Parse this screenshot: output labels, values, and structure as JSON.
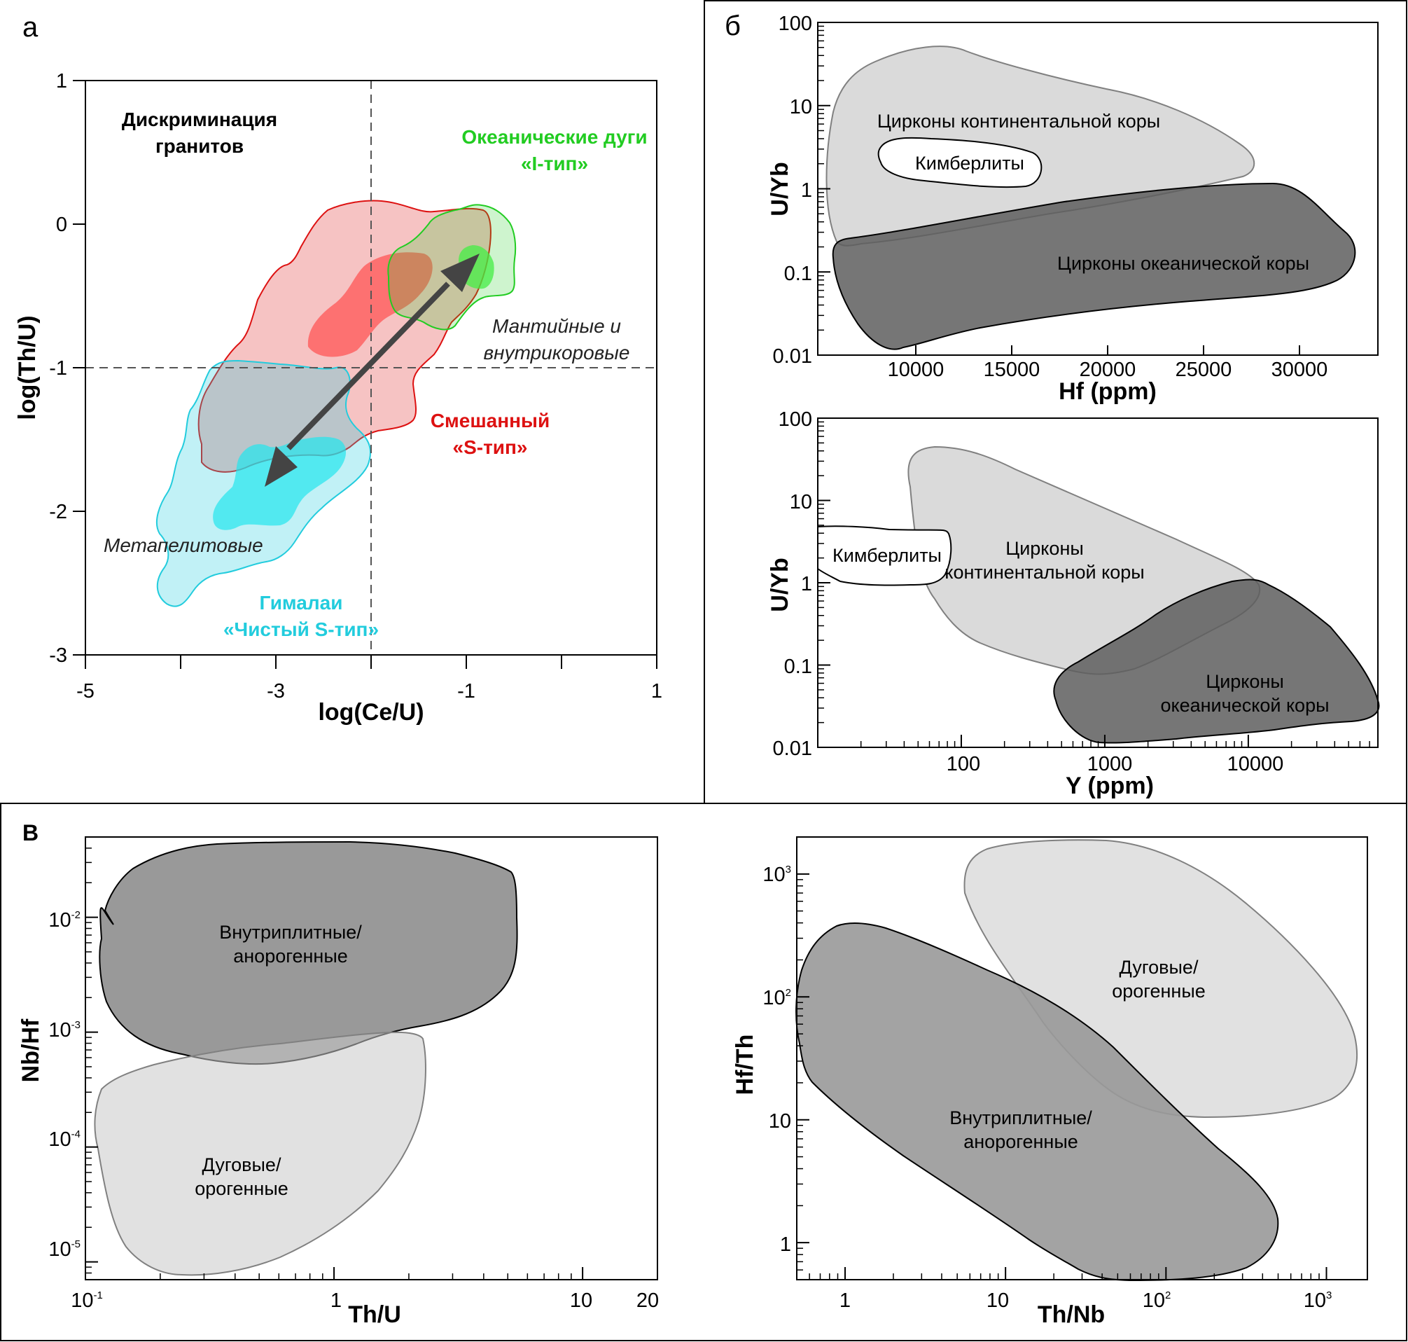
{
  "chart_data": [
    {
      "panel": "а",
      "type": "area",
      "xlabel": "log(Ce/U)",
      "ylabel": "log(Th/U)",
      "xlim": [
        -5,
        1
      ],
      "ylim": [
        -3,
        1
      ],
      "x_ticks": [
        "-5",
        "-3",
        "-1",
        "1"
      ],
      "y_ticks": [
        "1",
        "0",
        "-1",
        "-2",
        "-3"
      ],
      "reference_lines": {
        "x": -2,
        "y": -1
      },
      "header": "Дискриминация гранитов",
      "fields": [
        {
          "label": "Океанические дуги «I-тип»",
          "color": "#22cc22"
        },
        {
          "label": "Смешанный «S-тип»",
          "color": "#dd1111"
        },
        {
          "label": "Гималаи «Чистый S-тип»",
          "color": "#22ccdd"
        }
      ],
      "annotations": [
        "Мантийные и внутрикоровые",
        "Метапелитовые"
      ],
      "arrow": {
        "from": [
          -3.1,
          -1.8
        ],
        "to": [
          -0.95,
          -0.2
        ]
      }
    },
    {
      "panel": "б",
      "type": "area",
      "xlabel": "Hf (ppm)",
      "ylabel": "U/Yb",
      "x_ticks": [
        "10000",
        "15000",
        "20000",
        "25000",
        "30000"
      ],
      "y_ticks": [
        "100",
        "10",
        "1",
        "0.1",
        "0.01"
      ],
      "xlim": [
        5500,
        34500
      ],
      "ylim": [
        0.01,
        100
      ],
      "y_scale": "log",
      "fields": [
        "Цирконы континентальной коры",
        "Кимберлиты",
        "Цирконы океанической коры"
      ]
    },
    {
      "panel": "б",
      "type": "area",
      "xlabel": "Y (ppm)",
      "ylabel": "U/Yb",
      "x_ticks": [
        "100",
        "1000",
        "10000"
      ],
      "y_ticks": [
        "100",
        "10",
        "1",
        "0.1",
        "0.01"
      ],
      "xlim": [
        10,
        80000
      ],
      "ylim": [
        0.01,
        100
      ],
      "x_scale": "log",
      "y_scale": "log",
      "fields": [
        "Кимберлиты",
        "Цирконы континентальной коры",
        "Цирконы океанической коры"
      ]
    },
    {
      "panel": "в",
      "type": "area",
      "xlabel": "Th/U",
      "ylabel": "Nb/Hf",
      "x_ticks": [
        {
          "b": "10",
          "e": "-1"
        },
        {
          "b": "1",
          "e": ""
        },
        {
          "b": "10",
          "e": ""
        },
        {
          "b": "20",
          "e": ""
        }
      ],
      "y_ticks": [
        {
          "b": "10",
          "e": "-2"
        },
        {
          "b": "10",
          "e": "-3"
        },
        {
          "b": "10",
          "e": "-4"
        },
        {
          "b": "10",
          "e": "-5"
        }
      ],
      "xlim": [
        0.1,
        20
      ],
      "ylim": [
        7e-06,
        0.05
      ],
      "x_scale": "log",
      "y_scale": "log",
      "fields": [
        "Внутриплитные/ анорогенные",
        "Дуговые/ орогенные"
      ]
    },
    {
      "panel": "в",
      "type": "area",
      "xlabel": "Th/Nb",
      "ylabel": "Hf/Th",
      "x_ticks": [
        {
          "b": "1",
          "e": ""
        },
        {
          "b": "10",
          "e": ""
        },
        {
          "b": "10",
          "e": "2"
        },
        {
          "b": "10",
          "e": "3"
        }
      ],
      "y_ticks": [
        {
          "b": "10",
          "e": "3"
        },
        {
          "b": "10",
          "e": "2"
        },
        {
          "b": "10",
          "e": ""
        },
        {
          "b": "1",
          "e": ""
        }
      ],
      "xlim": [
        0.5,
        1800
      ],
      "ylim": [
        0.5,
        2000
      ],
      "x_scale": "log",
      "y_scale": "log",
      "fields": [
        "Дуговые/ орогенные",
        "Внутриплитные/ анорогенные"
      ]
    }
  ],
  "panel_letters": {
    "a": "а",
    "b": "б",
    "c": "в"
  },
  "colors": {
    "green": "#22cc22",
    "red": "#dd1111",
    "cyan": "#22ccdd",
    "light_gray": "#dadada",
    "dark_gray": "#5e5e5e",
    "mid_gray": "#a0a0a0",
    "arrow": "#444444"
  }
}
